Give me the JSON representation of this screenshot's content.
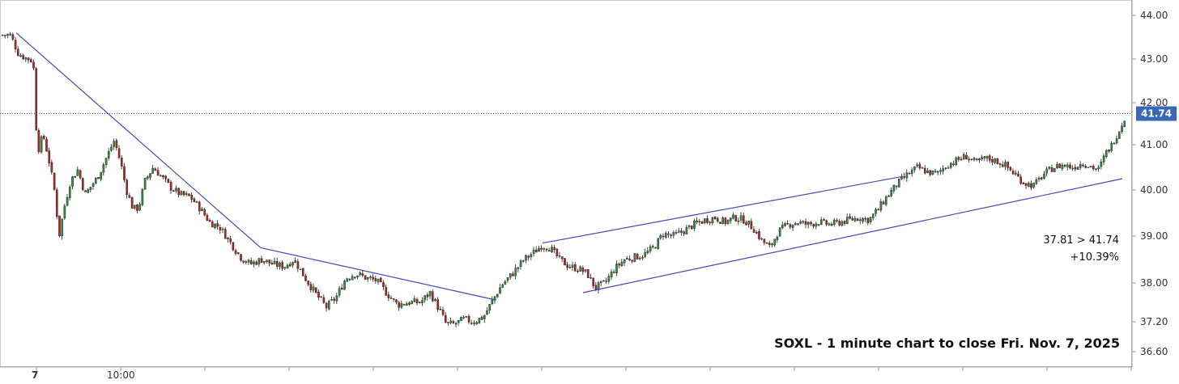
{
  "chart_data": {
    "type": "candlestick",
    "ticker": "SOXL",
    "interval": "1 minute",
    "y_ticks": [
      "44.00",
      "43.00",
      "42.00",
      "41.00",
      "40.00",
      "39.00",
      "38.00",
      "37.20",
      "36.60"
    ],
    "ylim": [
      36.4,
      44.3
    ],
    "x_ticks": [
      {
        "label": "7",
        "bold": true
      },
      {
        "label": "10:00",
        "bold": false
      }
    ],
    "last_price": 41.74,
    "last_price_label": "41.74",
    "change_line": "37.81 > 41.74",
    "change_pct": "+10.39%",
    "caption": "SOXL - 1 minute chart to close Fri. Nov. 7, 2025",
    "colors": {
      "up": "#2e8b3d",
      "down": "#b22222",
      "trendline": "#4848b8",
      "price_line": "#3355aa",
      "price_label_bg": "#3b67b8"
    },
    "price_path": [
      [
        0,
        43.55
      ],
      [
        12,
        43.55
      ],
      [
        22,
        43.1
      ],
      [
        40,
        42.95
      ],
      [
        45,
        40.8
      ],
      [
        52,
        41.25
      ],
      [
        60,
        40.6
      ],
      [
        66,
        40.0
      ],
      [
        72,
        39.0
      ],
      [
        78,
        39.6
      ],
      [
        86,
        40.2
      ],
      [
        95,
        40.45
      ],
      [
        104,
        39.9
      ],
      [
        112,
        40.1
      ],
      [
        120,
        40.3
      ],
      [
        130,
        40.7
      ],
      [
        140,
        41.1
      ],
      [
        148,
        40.6
      ],
      [
        155,
        40.0
      ],
      [
        163,
        39.6
      ],
      [
        170,
        39.6
      ],
      [
        178,
        40.2
      ],
      [
        188,
        40.5
      ],
      [
        198,
        40.3
      ],
      [
        210,
        40.05
      ],
      [
        222,
        39.9
      ],
      [
        234,
        39.85
      ],
      [
        246,
        39.6
      ],
      [
        258,
        39.3
      ],
      [
        270,
        39.2
      ],
      [
        282,
        38.9
      ],
      [
        296,
        38.55
      ],
      [
        308,
        38.4
      ],
      [
        322,
        38.5
      ],
      [
        336,
        38.4
      ],
      [
        350,
        38.35
      ],
      [
        362,
        38.5
      ],
      [
        376,
        38.1
      ],
      [
        390,
        37.75
      ],
      [
        402,
        37.5
      ],
      [
        414,
        37.7
      ],
      [
        426,
        38.1
      ],
      [
        438,
        38.2
      ],
      [
        452,
        38.1
      ],
      [
        464,
        38.05
      ],
      [
        476,
        37.8
      ],
      [
        490,
        37.55
      ],
      [
        504,
        37.6
      ],
      [
        518,
        37.6
      ],
      [
        530,
        37.8
      ],
      [
        540,
        37.5
      ],
      [
        550,
        37.15
      ],
      [
        560,
        37.15
      ],
      [
        572,
        37.25
      ],
      [
        584,
        37.2
      ],
      [
        596,
        37.3
      ],
      [
        606,
        37.6
      ],
      [
        618,
        37.95
      ],
      [
        632,
        38.2
      ],
      [
        646,
        38.5
      ],
      [
        658,
        38.65
      ],
      [
        668,
        38.8
      ],
      [
        678,
        38.75
      ],
      [
        690,
        38.5
      ],
      [
        702,
        38.35
      ],
      [
        714,
        38.3
      ],
      [
        724,
        38.2
      ],
      [
        734,
        37.9
      ],
      [
        746,
        38.0
      ],
      [
        758,
        38.3
      ],
      [
        770,
        38.5
      ],
      [
        782,
        38.55
      ],
      [
        794,
        38.6
      ],
      [
        806,
        38.75
      ],
      [
        818,
        39.05
      ],
      [
        830,
        39.0
      ],
      [
        842,
        39.1
      ],
      [
        856,
        39.25
      ],
      [
        870,
        39.35
      ],
      [
        882,
        39.4
      ],
      [
        894,
        39.3
      ],
      [
        906,
        39.4
      ],
      [
        918,
        39.35
      ],
      [
        930,
        39.15
      ],
      [
        940,
        38.9
      ],
      [
        950,
        38.75
      ],
      [
        960,
        39.1
      ],
      [
        972,
        39.25
      ],
      [
        984,
        39.3
      ],
      [
        996,
        39.25
      ],
      [
        1010,
        39.3
      ],
      [
        1024,
        39.25
      ],
      [
        1036,
        39.3
      ],
      [
        1048,
        39.35
      ],
      [
        1060,
        39.4
      ],
      [
        1072,
        39.35
      ],
      [
        1084,
        39.6
      ],
      [
        1096,
        39.9
      ],
      [
        1108,
        40.15
      ],
      [
        1120,
        40.35
      ],
      [
        1132,
        40.5
      ],
      [
        1144,
        40.4
      ],
      [
        1156,
        40.35
      ],
      [
        1168,
        40.55
      ],
      [
        1180,
        40.65
      ],
      [
        1192,
        40.75
      ],
      [
        1204,
        40.6
      ],
      [
        1216,
        40.7
      ],
      [
        1228,
        40.65
      ],
      [
        1240,
        40.55
      ],
      [
        1252,
        40.35
      ],
      [
        1264,
        40.15
      ],
      [
        1276,
        40.1
      ],
      [
        1288,
        40.35
      ],
      [
        1300,
        40.5
      ],
      [
        1312,
        40.55
      ],
      [
        1324,
        40.5
      ],
      [
        1336,
        40.6
      ],
      [
        1348,
        40.5
      ],
      [
        1356,
        40.45
      ],
      [
        1364,
        40.8
      ],
      [
        1372,
        41.0
      ],
      [
        1380,
        41.3
      ],
      [
        1390,
        41.74
      ]
    ],
    "trendlines": [
      {
        "points": [
          [
            20,
            43.6
          ],
          [
            322,
            38.75
          ],
          [
            612,
            37.65
          ]
        ]
      },
      {
        "points": [
          [
            670,
            38.85
          ],
          [
            1115,
            40.3
          ]
        ]
      },
      {
        "points": [
          [
            720,
            37.8
          ],
          [
            1386,
            40.25
          ]
        ]
      }
    ]
  }
}
